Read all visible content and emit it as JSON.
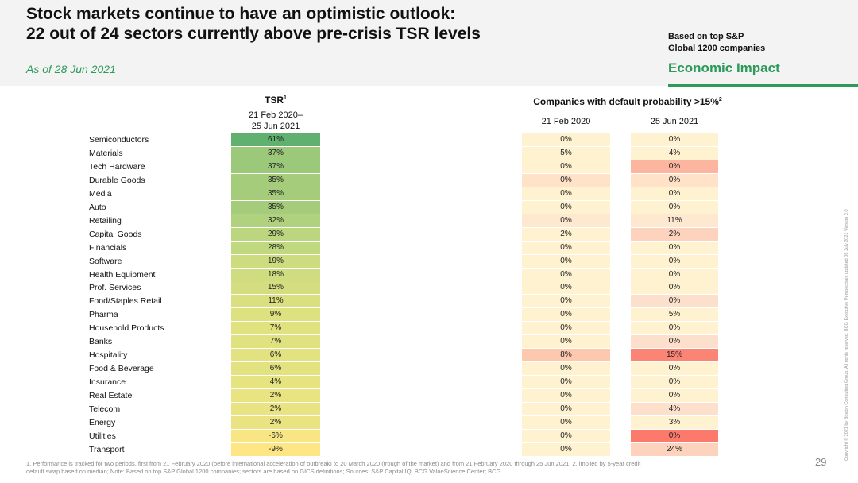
{
  "title": {
    "line1": "Stock markets continue to have an optimistic outlook:",
    "line2": "22 out of 24 sectors currently above pre-crisis TSR levels"
  },
  "subtitle": "As of 28 Jun 2021",
  "based_on": {
    "line1": "Based on top S&P",
    "line2": "Global 1200 companies"
  },
  "section": "Economic Impact",
  "headers": {
    "tsr": "TSR",
    "tsr_note": "1",
    "tsr_period_line1": "21 Feb 2020–",
    "tsr_period_line2": "25 Jun 2021",
    "default_prob": "Companies with default probability >15%",
    "default_note": "2",
    "feb": "21 Feb 2020",
    "jun": "25 Jun 2021"
  },
  "chart_data": {
    "type": "table",
    "title": "Stock markets continue to have an optimistic outlook: 22 out of 24 sectors currently above pre-crisis TSR levels",
    "columns": [
      "TSR 21 Feb 2020–25 Jun 2021",
      "Default prob >15% 21 Feb 2020",
      "Default prob >15% 25 Jun 2021"
    ],
    "rows": [
      {
        "sector": "Semiconductors",
        "tsr": "61%",
        "tsr_value": 61,
        "feb": "0%",
        "jun": "0%",
        "feb_color": "#fff2d0",
        "jun_color": "#fff2d0"
      },
      {
        "sector": "Materials",
        "tsr": "37%",
        "tsr_value": 37,
        "feb": "5%",
        "jun": "4%",
        "feb_color": "#fff2d0",
        "jun_color": "#fff2d0"
      },
      {
        "sector": "Tech Hardware",
        "tsr": "37%",
        "tsr_value": 37,
        "feb": "0%",
        "jun": "0%",
        "feb_color": "#fff2d0",
        "jun_color": "#fcb59e"
      },
      {
        "sector": "Durable Goods",
        "tsr": "35%",
        "tsr_value": 35,
        "feb": "0%",
        "jun": "0%",
        "feb_color": "#ffe2c8",
        "jun_color": "#ffe2c8"
      },
      {
        "sector": "Media",
        "tsr": "35%",
        "tsr_value": 35,
        "feb": "0%",
        "jun": "0%",
        "feb_color": "#fff2d0",
        "jun_color": "#fff2d0"
      },
      {
        "sector": "Auto",
        "tsr": "35%",
        "tsr_value": 35,
        "feb": "0%",
        "jun": "0%",
        "feb_color": "#fff2d0",
        "jun_color": "#fff2d0"
      },
      {
        "sector": "Retailing",
        "tsr": "32%",
        "tsr_value": 32,
        "feb": "0%",
        "jun": "11%",
        "feb_color": "#ffe8d0",
        "jun_color": "#ffe8d0"
      },
      {
        "sector": "Capital Goods",
        "tsr": "29%",
        "tsr_value": 29,
        "feb": "2%",
        "jun": "2%",
        "feb_color": "#fff2d0",
        "jun_color": "#fdd3bd"
      },
      {
        "sector": "Financials",
        "tsr": "28%",
        "tsr_value": 28,
        "feb": "0%",
        "jun": "0%",
        "feb_color": "#fff2d0",
        "jun_color": "#fff2d0"
      },
      {
        "sector": "Software",
        "tsr": "19%",
        "tsr_value": 19,
        "feb": "0%",
        "jun": "0%",
        "feb_color": "#fff2d0",
        "jun_color": "#fff2d0"
      },
      {
        "sector": "Health Equipment",
        "tsr": "18%",
        "tsr_value": 18,
        "feb": "0%",
        "jun": "0%",
        "feb_color": "#fff2d0",
        "jun_color": "#fff2d0"
      },
      {
        "sector": "Prof. Services",
        "tsr": "15%",
        "tsr_value": 15,
        "feb": "0%",
        "jun": "0%",
        "feb_color": "#fff2d0",
        "jun_color": "#fff2d0"
      },
      {
        "sector": "Food/Staples Retail",
        "tsr": "11%",
        "tsr_value": 11,
        "feb": "0%",
        "jun": "0%",
        "feb_color": "#fff2d0",
        "jun_color": "#fde0cb"
      },
      {
        "sector": "Pharma",
        "tsr": "9%",
        "tsr_value": 9,
        "feb": "0%",
        "jun": "5%",
        "feb_color": "#fff2d0",
        "jun_color": "#fff2d0"
      },
      {
        "sector": "Household Products",
        "tsr": "7%",
        "tsr_value": 7,
        "feb": "0%",
        "jun": "0%",
        "feb_color": "#fff2d0",
        "jun_color": "#fff2d0"
      },
      {
        "sector": "Banks",
        "tsr": "7%",
        "tsr_value": 7,
        "feb": "0%",
        "jun": "0%",
        "feb_color": "#fff2d0",
        "jun_color": "#fde0cb"
      },
      {
        "sector": "Hospitality",
        "tsr": "6%",
        "tsr_value": 6,
        "feb": "8%",
        "jun": "15%",
        "feb_color": "#fdc8ae",
        "jun_color": "#fc8474"
      },
      {
        "sector": "Food & Beverage",
        "tsr": "6%",
        "tsr_value": 6,
        "feb": "0%",
        "jun": "0%",
        "feb_color": "#fff2d0",
        "jun_color": "#fff2d0"
      },
      {
        "sector": "Insurance",
        "tsr": "4%",
        "tsr_value": 4,
        "feb": "0%",
        "jun": "0%",
        "feb_color": "#fff2d0",
        "jun_color": "#fff2d0"
      },
      {
        "sector": "Real Estate",
        "tsr": "2%",
        "tsr_value": 2,
        "feb": "0%",
        "jun": "0%",
        "feb_color": "#fff2d0",
        "jun_color": "#fff2d0"
      },
      {
        "sector": "Telecom",
        "tsr": "2%",
        "tsr_value": 2,
        "feb": "0%",
        "jun": "4%",
        "feb_color": "#fff2d0",
        "jun_color": "#fde0cb"
      },
      {
        "sector": "Energy",
        "tsr": "2%",
        "tsr_value": 2,
        "feb": "0%",
        "jun": "3%",
        "feb_color": "#fff2d0",
        "jun_color": "#fff2d0"
      },
      {
        "sector": "Utilities",
        "tsr": "-6%",
        "tsr_value": -6,
        "feb": "0%",
        "jun": "0%",
        "feb_color": "#fff2d0",
        "jun_color": "#fc7a6c"
      },
      {
        "sector": "Transport",
        "tsr": "-9%",
        "tsr_value": -9,
        "feb": "0%",
        "jun": "24%",
        "feb_color": "#fff2d0",
        "jun_color": "#fdd3bd"
      }
    ]
  },
  "footnote": {
    "line1": "1. Performance is tracked for two periods, first from 21 February 2020 (before international acceleration of outbreak) to 20 March 2020 (trough of the market) and from 21 February 2020 through 25 Jun 2021; 2. implied by 5-year credit",
    "line2": "default swap based on median; Note: Based on top S&P Global 1200 companies; sectors are based on GICS definitions; Sources: S&P Capital IQ; BCG ValueScience Center; BCG"
  },
  "page_number": "29",
  "copyright": "Copyright © 2021 by Boston Consulting Group. All rights reserved. BCG Executive Perspectives updated 08 July 2021 Version 2.0"
}
